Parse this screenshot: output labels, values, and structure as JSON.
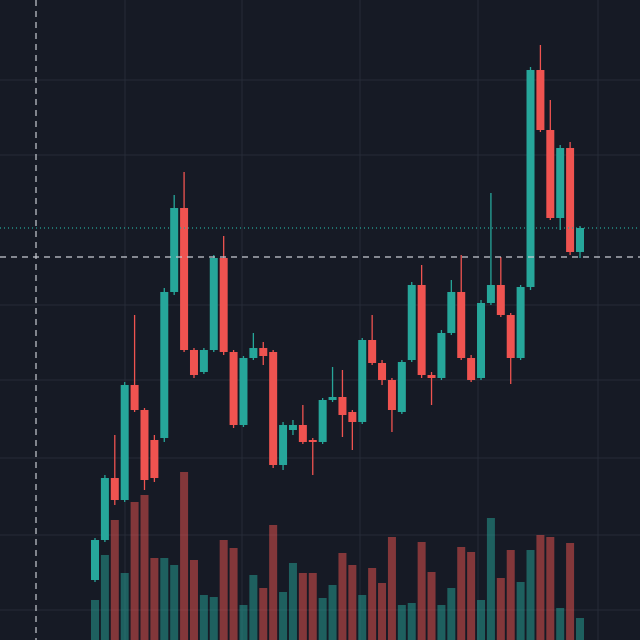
{
  "chart_data": {
    "type": "candlestick",
    "open": [
      60,
      100,
      162,
      140,
      255,
      230,
      200,
      202,
      348,
      432,
      290,
      268,
      290,
      382,
      288,
      215,
      282,
      292,
      288,
      175,
      210,
      215,
      200,
      198,
      240,
      243,
      228,
      218,
      300,
      277,
      260,
      228,
      280,
      355,
      265,
      262,
      307,
      348,
      282,
      262,
      337,
      355,
      325,
      282,
      353,
      570,
      510,
      422,
      492,
      388
    ],
    "high": [
      102,
      165,
      205,
      258,
      325,
      232,
      205,
      352,
      445,
      468,
      292,
      292,
      385,
      404,
      290,
      284,
      307,
      298,
      290,
      218,
      220,
      235,
      202,
      242,
      273,
      270,
      230,
      302,
      325,
      280,
      262,
      280,
      358,
      375,
      268,
      310,
      360,
      385,
      285,
      340,
      447,
      383,
      327,
      355,
      573,
      595,
      540,
      495,
      498,
      414
    ],
    "low": [
      58,
      98,
      135,
      138,
      228,
      150,
      158,
      198,
      345,
      288,
      262,
      266,
      288,
      285,
      212,
      213,
      280,
      275,
      172,
      170,
      205,
      196,
      165,
      196,
      238,
      203,
      190,
      216,
      275,
      255,
      208,
      226,
      278,
      262,
      235,
      260,
      305,
      280,
      258,
      260,
      335,
      323,
      256,
      280,
      350,
      508,
      420,
      410,
      385,
      382
    ],
    "close": [
      100,
      162,
      140,
      255,
      230,
      160,
      162,
      348,
      432,
      290,
      265,
      290,
      382,
      288,
      215,
      282,
      292,
      284,
      175,
      215,
      215,
      198,
      198,
      240,
      243,
      225,
      218,
      300,
      277,
      260,
      230,
      278,
      355,
      265,
      262,
      307,
      348,
      282,
      260,
      337,
      355,
      325,
      282,
      353,
      570,
      510,
      422,
      492,
      388,
      412
    ],
    "volume": [
      40,
      85,
      120,
      67,
      138,
      145,
      82,
      82,
      75,
      168,
      80,
      45,
      43,
      100,
      92,
      35,
      65,
      52,
      115,
      48,
      77,
      67,
      67,
      42,
      55,
      87,
      75,
      45,
      72,
      57,
      103,
      35,
      37,
      98,
      68,
      35,
      52,
      93,
      88,
      40,
      122,
      62,
      90,
      58,
      90,
      105,
      103,
      32,
      97,
      22
    ],
    "ylim": [
      0,
      640
    ],
    "y2lim": [
      0,
      640
    ],
    "up_color": "#26a69a",
    "down_color": "#ef5350"
  }
}
